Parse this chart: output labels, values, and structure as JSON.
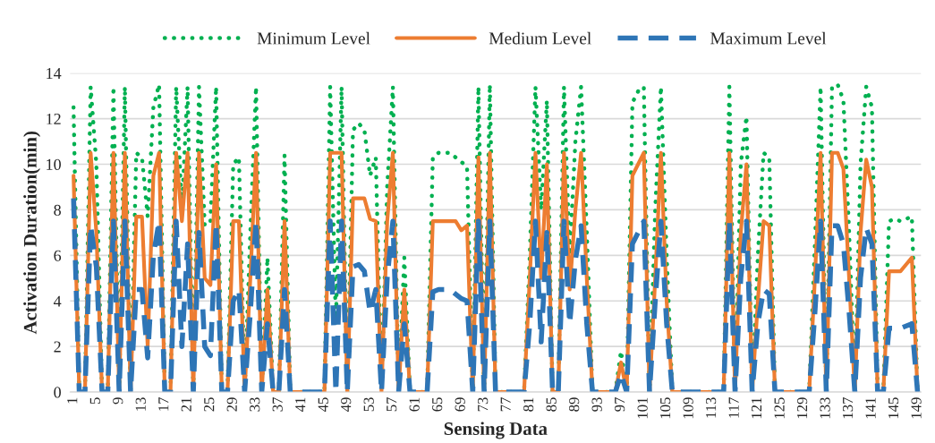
{
  "chart_data": {
    "type": "line",
    "xlabel": "Sensing Data",
    "ylabel": "Activation Duration(min)",
    "categories": [
      "1",
      null,
      null,
      null,
      "5",
      null,
      null,
      null,
      "9",
      null,
      null,
      null,
      "13",
      null,
      null,
      null,
      "17",
      null,
      null,
      null,
      "21",
      null,
      null,
      null,
      "25",
      null,
      null,
      null,
      "29",
      null,
      null,
      null,
      "33",
      null,
      null,
      null,
      "37",
      null,
      null,
      null,
      "41",
      null,
      null,
      null,
      "45",
      null,
      null,
      null,
      "49",
      null,
      null,
      null,
      "53",
      null,
      null,
      null,
      "57",
      null,
      null,
      null,
      "61",
      null,
      null,
      null,
      "65",
      null,
      null,
      null,
      "69",
      null,
      null,
      null,
      "73",
      null,
      null,
      null,
      "77",
      null,
      null,
      null,
      "81",
      null,
      null,
      null,
      "85",
      null,
      null,
      null,
      "89",
      null,
      null,
      null,
      "93",
      null,
      null,
      null,
      "97",
      null,
      null,
      null,
      "101",
      null,
      null,
      null,
      "105",
      null,
      null,
      null,
      "109",
      null,
      null,
      null,
      "113",
      null,
      null,
      null,
      "117",
      null,
      null,
      null,
      "121",
      null,
      null,
      null,
      "125",
      null,
      null,
      null,
      "129",
      null,
      null,
      null,
      "133",
      null,
      null,
      null,
      "137",
      null,
      null,
      null,
      "141",
      null,
      null,
      null,
      "145",
      null,
      null,
      null,
      "149"
    ],
    "series": [
      {
        "name": "Minimum Level",
        "color": "#00b050",
        "line_style": "dotted",
        "values": [
          12.5,
          0,
          0,
          13.4,
          10,
          0,
          0,
          13.4,
          0,
          13.4,
          0,
          10.5,
          10.3,
          7.7,
          12.5,
          13.5,
          0,
          0,
          13.4,
          8,
          13.4,
          0,
          13.4,
          7.3,
          7.5,
          13.4,
          0,
          0,
          10,
          10.3,
          0,
          7,
          13.4,
          0,
          5.9,
          0,
          0,
          10.4,
          0,
          0,
          0,
          0,
          0,
          0,
          0,
          13.4,
          3,
          13.4,
          0,
          11.5,
          11.8,
          11.5,
          9.5,
          10.3,
          0,
          9,
          13.4,
          0,
          5.9,
          0,
          0,
          0,
          0,
          10.3,
          10.5,
          10.5,
          10.5,
          10.3,
          10.1,
          9.9,
          0,
          13.4,
          0,
          13.5,
          0,
          0,
          0,
          0,
          0,
          0,
          6,
          13.4,
          8,
          12.8,
          0,
          0,
          13.4,
          6,
          11,
          13.4,
          7,
          0,
          0,
          0,
          0,
          0,
          1.8,
          0,
          12.7,
          13.2,
          13.4,
          0,
          8,
          13.4,
          6,
          0,
          0,
          0,
          0,
          0,
          0,
          0,
          0,
          0,
          0,
          13.4,
          0,
          10,
          12.1,
          0,
          6,
          10.5,
          10.3,
          0,
          0,
          0,
          0,
          0,
          0,
          0,
          6.5,
          13.4,
          0,
          13.4,
          13.5,
          12.8,
          7,
          0,
          10,
          13.4,
          12.5,
          0,
          0,
          7.5,
          7.6,
          7.5,
          7.6,
          7.7,
          0
        ]
      },
      {
        "name": "Medium Level",
        "color": "#ed7d31",
        "line_style": "solid",
        "values": [
          9.5,
          0,
          0,
          10.5,
          7,
          0,
          0,
          10.5,
          0,
          10.5,
          0,
          7.7,
          7.7,
          2,
          9.5,
          10.5,
          0,
          0,
          10.5,
          7.5,
          10.5,
          0,
          10.5,
          5,
          4.7,
          10,
          0,
          0,
          7.5,
          7.5,
          0,
          5,
          10.5,
          0,
          4.5,
          0,
          0,
          7.5,
          0,
          0,
          0,
          0,
          0,
          0,
          0,
          10.5,
          null,
          10.5,
          0,
          8.5,
          8.5,
          8.5,
          7.6,
          7.5,
          0,
          7.5,
          10.5,
          0,
          4.5,
          0,
          0,
          0,
          0,
          7.5,
          7.5,
          7.5,
          7.5,
          7.5,
          7.1,
          7.3,
          0,
          10.3,
          0,
          10.5,
          0,
          0,
          0,
          0,
          0,
          0,
          5,
          10.5,
          5,
          10,
          0,
          0,
          10.5,
          4.5,
          8,
          10.5,
          5,
          0,
          0,
          0,
          0,
          0,
          1.3,
          0,
          9.5,
          10,
          10.5,
          0,
          5,
          10.5,
          4,
          0,
          0,
          0,
          0,
          0,
          0,
          0,
          0,
          0,
          0,
          10.5,
          0,
          7,
          10,
          0,
          4,
          7.5,
          7.3,
          0,
          0,
          0,
          0,
          0,
          0,
          0,
          5,
          10.5,
          0,
          10.5,
          10.5,
          9.8,
          5,
          0,
          7,
          10.2,
          9,
          0,
          0,
          5.3,
          5.3,
          5.3,
          5.6,
          5.9,
          0
        ]
      },
      {
        "name": "Maximum Level",
        "color": "#2e75b6",
        "line_style": "dashed",
        "values": [
          8.5,
          0,
          0,
          7.3,
          5.5,
          0,
          0,
          7.5,
          0,
          7.5,
          0,
          4.5,
          4.5,
          1.5,
          6,
          7.5,
          0,
          0,
          7.5,
          2,
          6.5,
          0,
          7,
          2,
          1.6,
          7.4,
          0,
          0,
          4,
          4.5,
          0,
          3.5,
          7.5,
          0,
          3,
          0,
          0,
          4.5,
          0,
          0,
          0,
          0,
          0,
          0,
          0,
          7.5,
          0,
          7.5,
          0,
          5.5,
          5.6,
          5.3,
          3.5,
          4.5,
          0,
          5,
          7.5,
          0,
          3,
          0,
          0,
          0,
          0,
          4.4,
          4.5,
          4.5,
          4.5,
          4.3,
          4.1,
          4,
          0,
          7.5,
          0,
          7.5,
          0,
          0,
          0,
          0,
          0,
          0,
          3,
          7.5,
          2.2,
          7,
          0,
          0,
          7.5,
          3,
          5.8,
          7.3,
          3,
          0,
          0,
          0,
          0,
          0,
          0.8,
          0,
          6.5,
          7,
          7.5,
          0,
          4,
          7.5,
          3,
          0,
          0,
          0,
          0,
          0,
          0,
          0,
          0,
          0,
          0,
          7.5,
          0,
          5,
          7.5,
          0,
          3,
          4.5,
          4.3,
          0,
          0,
          0,
          0,
          0,
          0,
          0,
          3.5,
          7.5,
          0,
          7.3,
          7.3,
          6.5,
          3.5,
          0,
          5,
          7.2,
          6.5,
          0,
          0,
          2.8,
          2.8,
          2.8,
          2.9,
          3,
          0
        ]
      }
    ],
    "ylim": [
      0,
      14
    ],
    "yticks": [
      0,
      2,
      4,
      6,
      8,
      10,
      12,
      14
    ],
    "grid": "y",
    "legend": "top"
  }
}
